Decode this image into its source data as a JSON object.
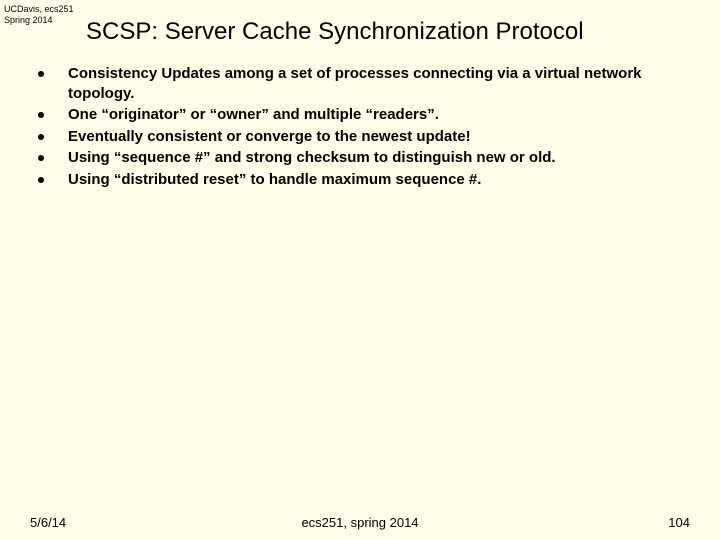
{
  "header": {
    "line1": "UCDavis, ecs251",
    "line2": "Spring 2014"
  },
  "title": "SCSP: Server Cache Synchronization Protocol",
  "bullets": [
    "Consistency Updates among a set of processes connecting via a virtual network topology.",
    "One “originator” or “owner” and multiple “readers”.",
    "Eventually consistent or converge to the newest update!",
    "Using “sequence #” and strong checksum to distinguish new or old.",
    "Using “distributed reset” to handle maximum sequence #."
  ],
  "footer": {
    "date": "5/6/14",
    "center": "ecs251, spring 2014",
    "page": "104"
  }
}
